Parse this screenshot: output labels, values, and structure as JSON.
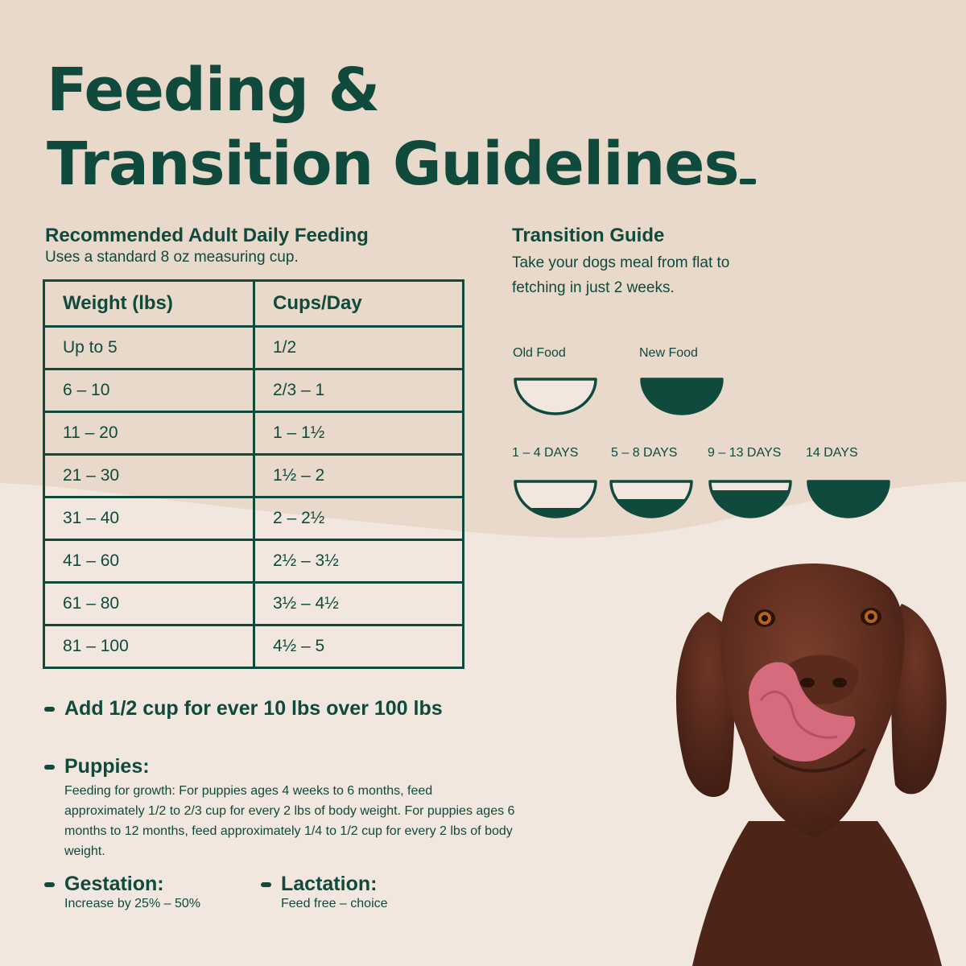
{
  "title": {
    "line1": "Feeding &",
    "line2": "Transition Guidelines"
  },
  "feeding": {
    "heading": "Recommended Adult Daily Feeding",
    "subheading": "Uses a standard 8 oz measuring cup.",
    "columns": [
      "Weight (lbs)",
      "Cups/Day"
    ],
    "rows": [
      [
        "Up to 5",
        "1/2"
      ],
      [
        "6 – 10",
        "2/3 – 1"
      ],
      [
        "11 – 20",
        "1 – 1½"
      ],
      [
        "21 – 30",
        "1½ – 2"
      ],
      [
        "31 – 40",
        "2 – 2½"
      ],
      [
        "41 – 60",
        "2½ – 3½"
      ],
      [
        "61 – 80",
        "3½ – 4½"
      ],
      [
        "81 – 100",
        "4½ – 5"
      ]
    ]
  },
  "notes": {
    "extra": "Add 1/2 cup for ever 10 lbs over 100 lbs",
    "puppies_heading": "Puppies:",
    "puppies_text": "Feeding for growth: For puppies ages 4 weeks to 6 months, feed approximately 1/2 to 2/3 cup for every 2 lbs of body weight. For puppies ages 6 months to 12 months, feed approximately 1/4 to 1/2 cup for every 2 lbs of body weight.",
    "gestation_heading": "Gestation:",
    "gestation_text": "Increase by 25% – 50%",
    "lactation_heading": "Lactation:",
    "lactation_text": "Feed free – choice"
  },
  "transition": {
    "heading": "Transition Guide",
    "text": "Take your dogs meal from flat to fetching in just 2 weeks.",
    "legend_old": "Old Food",
    "legend_new": "New Food",
    "stages": [
      {
        "label": "1 – 4 DAYS",
        "new_fraction": 0.25
      },
      {
        "label": "5 – 8 DAYS",
        "new_fraction": 0.5
      },
      {
        "label": "9 – 13 DAYS",
        "new_fraction": 0.75
      },
      {
        "label": "14 DAYS",
        "new_fraction": 1.0
      }
    ]
  },
  "colors": {
    "brand_green": "#0f4a3c",
    "background_light": "#f1e7de",
    "background_tan": "#e8d9cb",
    "bowl_fill_empty": "#f1e7de"
  },
  "image": {
    "subject": "dog-photo"
  }
}
